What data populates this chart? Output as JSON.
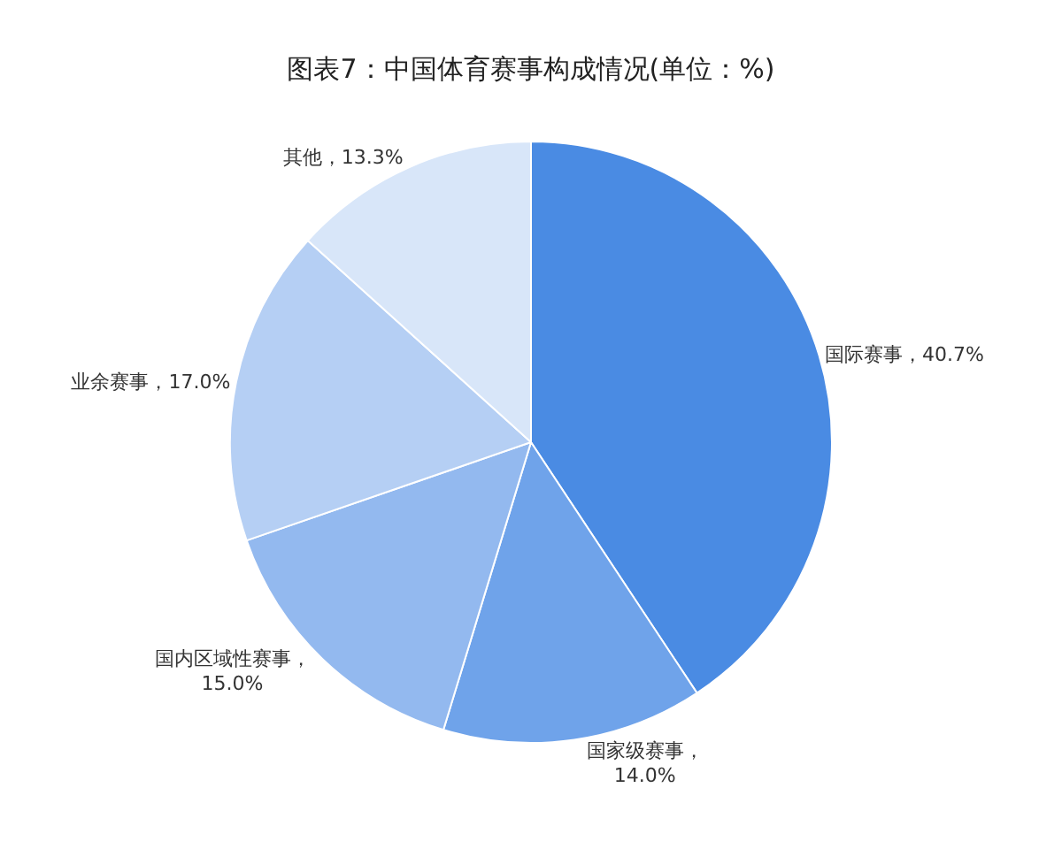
{
  "chart_data": {
    "type": "pie",
    "title": "图表7：中国体育赛事构成情况(单位：%)",
    "categories": [
      "国际赛事",
      "国家级赛事",
      "国内区域性赛事",
      "业余赛事",
      "其他"
    ],
    "values": [
      40.7,
      14.0,
      15.0,
      17.0,
      13.3
    ],
    "colors": [
      "#4a8be3",
      "#6fa3ea",
      "#93b9ef",
      "#b5cff4",
      "#d8e6f9"
    ],
    "value_labels": [
      "，40.7%",
      "，\n14.0%",
      "，\n15.0%",
      "，17.0%",
      "，13.3%"
    ],
    "legend": false
  }
}
